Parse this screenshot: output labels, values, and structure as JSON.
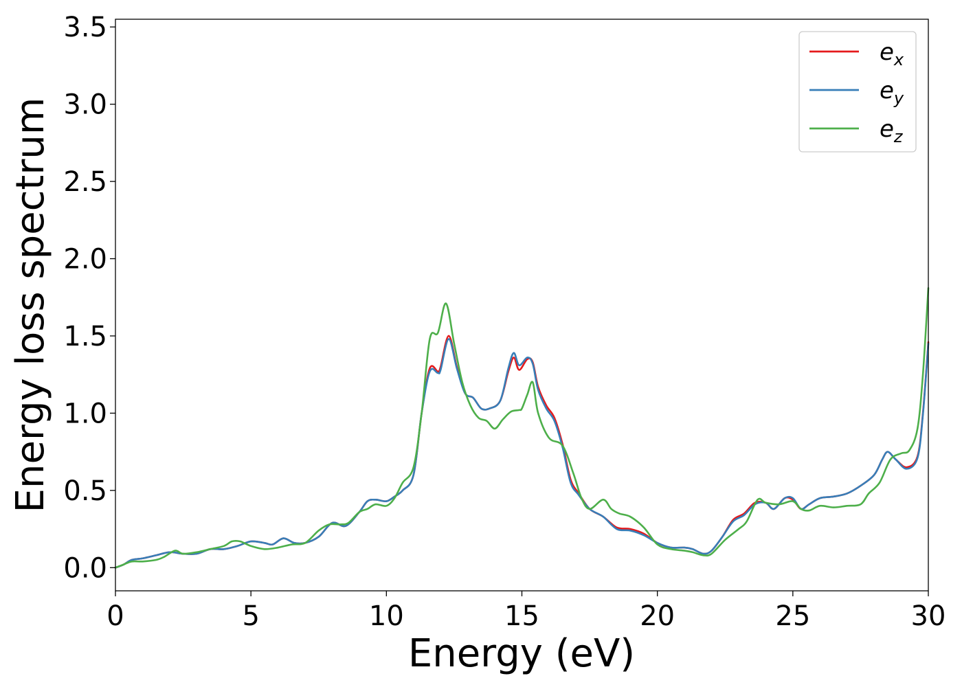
{
  "chart_data": {
    "type": "line",
    "title": "",
    "xlabel": "Energy (eV)",
    "ylabel": "Energy loss spectrum",
    "xlim": [
      0,
      30
    ],
    "ylim": [
      -0.15,
      3.55
    ],
    "xticks": [
      0,
      5,
      10,
      15,
      20,
      25,
      30
    ],
    "yticks": [
      0.0,
      0.5,
      1.0,
      1.5,
      2.0,
      2.5,
      3.0,
      3.5
    ],
    "xtick_labels": [
      "0",
      "5",
      "10",
      "15",
      "20",
      "25",
      "30"
    ],
    "ytick_labels": [
      "0.0",
      "0.5",
      "1.0",
      "1.5",
      "2.0",
      "2.5",
      "3.0",
      "3.5"
    ],
    "grid": false,
    "legend_position": "top-right",
    "series": [
      {
        "name": "e_x",
        "label_base": "e",
        "label_sub": "x",
        "color": "#e41a1c",
        "x": [
          0,
          0.3,
          0.6,
          1.0,
          1.5,
          2.0,
          2.5,
          3.0,
          3.5,
          4.0,
          4.5,
          5.0,
          5.5,
          5.8,
          6.2,
          6.6,
          7.0,
          7.5,
          8.0,
          8.5,
          9.0,
          9.3,
          9.6,
          10.0,
          10.3,
          10.6,
          11.0,
          11.3,
          11.6,
          11.9,
          12.0,
          12.3,
          12.6,
          12.9,
          13.2,
          13.5,
          13.8,
          14.2,
          14.5,
          14.7,
          14.9,
          15.2,
          15.4,
          15.6,
          15.9,
          16.2,
          16.5,
          16.8,
          17.1,
          17.5,
          18.0,
          18.5,
          19.0,
          19.5,
          20.0,
          20.5,
          21.0,
          21.3,
          21.7,
          22.0,
          22.4,
          22.8,
          23.2,
          23.6,
          24.0,
          24.3,
          24.7,
          25.0,
          25.3,
          25.6,
          26.0,
          26.5,
          27.0,
          27.5,
          28.0,
          28.3,
          28.5,
          28.8,
          29.2,
          29.6,
          29.8,
          30.0
        ],
        "y": [
          0.0,
          0.02,
          0.05,
          0.06,
          0.08,
          0.1,
          0.09,
          0.09,
          0.12,
          0.12,
          0.14,
          0.17,
          0.16,
          0.15,
          0.19,
          0.16,
          0.16,
          0.2,
          0.29,
          0.27,
          0.36,
          0.43,
          0.44,
          0.43,
          0.46,
          0.5,
          0.6,
          1.0,
          1.29,
          1.27,
          1.3,
          1.5,
          1.3,
          1.13,
          1.1,
          1.03,
          1.03,
          1.08,
          1.27,
          1.36,
          1.28,
          1.35,
          1.33,
          1.17,
          1.05,
          0.97,
          0.8,
          0.57,
          0.48,
          0.38,
          0.33,
          0.26,
          0.25,
          0.22,
          0.16,
          0.13,
          0.13,
          0.12,
          0.09,
          0.11,
          0.2,
          0.31,
          0.35,
          0.42,
          0.42,
          0.38,
          0.45,
          0.44,
          0.38,
          0.41,
          0.45,
          0.46,
          0.48,
          0.53,
          0.6,
          0.7,
          0.75,
          0.7,
          0.65,
          0.72,
          1.0,
          1.46
        ]
      },
      {
        "name": "e_y",
        "label_base": "e",
        "label_sub": "y",
        "color": "#377eb8",
        "x": [
          0,
          0.3,
          0.6,
          1.0,
          1.5,
          2.0,
          2.5,
          3.0,
          3.5,
          4.0,
          4.5,
          5.0,
          5.5,
          5.8,
          6.2,
          6.6,
          7.0,
          7.5,
          8.0,
          8.5,
          9.0,
          9.3,
          9.6,
          10.0,
          10.3,
          10.6,
          11.0,
          11.3,
          11.6,
          11.9,
          12.0,
          12.3,
          12.6,
          12.9,
          13.2,
          13.5,
          13.8,
          14.2,
          14.5,
          14.7,
          14.9,
          15.2,
          15.4,
          15.6,
          15.9,
          16.2,
          16.5,
          16.8,
          17.1,
          17.5,
          18.0,
          18.5,
          19.0,
          19.5,
          20.0,
          20.5,
          21.0,
          21.3,
          21.7,
          22.0,
          22.4,
          22.8,
          23.2,
          23.6,
          24.0,
          24.3,
          24.7,
          25.0,
          25.3,
          25.6,
          26.0,
          26.5,
          27.0,
          27.5,
          28.0,
          28.3,
          28.5,
          28.8,
          29.2,
          29.6,
          29.8,
          30.0
        ],
        "y": [
          0.0,
          0.02,
          0.05,
          0.06,
          0.08,
          0.1,
          0.09,
          0.09,
          0.12,
          0.12,
          0.14,
          0.17,
          0.16,
          0.15,
          0.19,
          0.16,
          0.16,
          0.2,
          0.29,
          0.27,
          0.36,
          0.43,
          0.44,
          0.43,
          0.46,
          0.5,
          0.6,
          1.0,
          1.27,
          1.26,
          1.28,
          1.48,
          1.29,
          1.13,
          1.1,
          1.03,
          1.03,
          1.08,
          1.29,
          1.39,
          1.31,
          1.36,
          1.32,
          1.15,
          1.03,
          0.95,
          0.78,
          0.55,
          0.47,
          0.38,
          0.33,
          0.25,
          0.24,
          0.21,
          0.16,
          0.13,
          0.13,
          0.12,
          0.09,
          0.11,
          0.2,
          0.3,
          0.34,
          0.41,
          0.42,
          0.38,
          0.45,
          0.45,
          0.38,
          0.41,
          0.45,
          0.46,
          0.48,
          0.53,
          0.6,
          0.7,
          0.75,
          0.7,
          0.64,
          0.71,
          0.99,
          1.45
        ]
      },
      {
        "name": "e_z",
        "label_base": "e",
        "label_sub": "z",
        "color": "#4daf4a",
        "x": [
          0,
          0.3,
          0.6,
          1.0,
          1.5,
          1.8,
          2.2,
          2.5,
          3.0,
          3.5,
          4.0,
          4.3,
          4.6,
          5.0,
          5.5,
          6.0,
          6.5,
          7.0,
          7.5,
          7.9,
          8.3,
          8.6,
          9.0,
          9.3,
          9.6,
          10.0,
          10.3,
          10.6,
          11.0,
          11.3,
          11.6,
          11.9,
          12.2,
          12.5,
          12.8,
          13.1,
          13.4,
          13.7,
          14.0,
          14.3,
          14.6,
          14.9,
          15.0,
          15.2,
          15.4,
          15.6,
          16.0,
          16.5,
          16.9,
          17.2,
          17.5,
          18.0,
          18.3,
          18.6,
          19.0,
          19.5,
          20.0,
          20.5,
          21.0,
          21.3,
          21.7,
          22.0,
          22.5,
          23.0,
          23.3,
          23.7,
          24.0,
          24.5,
          25.0,
          25.3,
          25.6,
          26.0,
          26.5,
          27.0,
          27.5,
          27.8,
          28.2,
          28.6,
          29.0,
          29.3,
          29.6,
          29.8,
          30.0
        ],
        "y": [
          0.0,
          0.02,
          0.04,
          0.04,
          0.05,
          0.07,
          0.11,
          0.09,
          0.1,
          0.12,
          0.14,
          0.17,
          0.17,
          0.14,
          0.12,
          0.13,
          0.15,
          0.16,
          0.24,
          0.28,
          0.28,
          0.29,
          0.36,
          0.38,
          0.41,
          0.4,
          0.45,
          0.55,
          0.65,
          1.0,
          1.48,
          1.52,
          1.71,
          1.45,
          1.2,
          1.05,
          0.97,
          0.95,
          0.9,
          0.96,
          1.01,
          1.02,
          1.03,
          1.12,
          1.2,
          1.0,
          0.84,
          0.79,
          0.61,
          0.45,
          0.38,
          0.44,
          0.38,
          0.35,
          0.33,
          0.26,
          0.15,
          0.12,
          0.11,
          0.1,
          0.08,
          0.09,
          0.18,
          0.25,
          0.3,
          0.44,
          0.42,
          0.41,
          0.43,
          0.38,
          0.37,
          0.4,
          0.39,
          0.4,
          0.41,
          0.48,
          0.55,
          0.7,
          0.74,
          0.76,
          0.9,
          1.25,
          1.81
        ]
      }
    ]
  }
}
